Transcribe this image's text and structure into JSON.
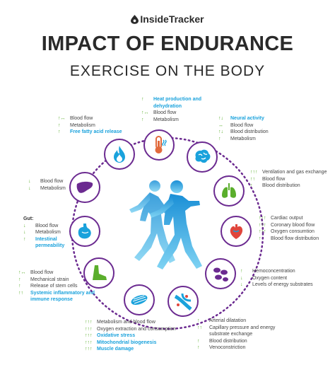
{
  "brand": "InsideTracker",
  "title_line1": "IMPACT OF ENDURANCE",
  "title_line2": "EXERCISE ON THE BODY",
  "colors": {
    "ring": "#6b2a90",
    "arrows": "#5aae2c",
    "highlight": "#1aa2dc",
    "runner": "#1aa2dc"
  },
  "blocks": {
    "fire": {
      "rows": [
        {
          "arrow": "↑↔",
          "text": "Blood flow"
        },
        {
          "arrow": "↑",
          "text": "Metabolism"
        },
        {
          "arrow": "↑",
          "text": "Free fatty acid release",
          "em": true
        }
      ]
    },
    "thermo": {
      "rows": [
        {
          "arrow": "↑",
          "text": "Heat production and dehydration",
          "em": true
        },
        {
          "arrow": "↑↔",
          "text": "Blood flow"
        },
        {
          "arrow": "↑",
          "text": "Metabolism"
        }
      ]
    },
    "brain": {
      "rows": [
        {
          "arrow": "↑↓",
          "text": "Neural activity",
          "em": true
        },
        {
          "arrow": "↔",
          "text": "Blood flow"
        },
        {
          "arrow": "↑↓",
          "text": "Blood distribution"
        },
        {
          "arrow": "↑",
          "text": "Metabolism"
        }
      ]
    },
    "lungs": {
      "rows": [
        {
          "arrow": "↑↑↑",
          "text": "Ventilation and gas exchange"
        },
        {
          "arrow": "↑↑",
          "text": "Blood flow"
        },
        {
          "arrow": "↑",
          "text": "Blood distribution"
        }
      ]
    },
    "heart": {
      "rows": [
        {
          "arrow": "↑↑↑",
          "text": "Cardiac output"
        },
        {
          "arrow": "↑↑↑",
          "text": "Coronary blood flow"
        },
        {
          "arrow": "↑↑↑",
          "text": "Oxygen consumtion"
        },
        {
          "arrow": "↑",
          "text": "Blood flow distribution"
        }
      ]
    },
    "blood": {
      "rows": [
        {
          "arrow": "↑",
          "text": "Hemoconcentration"
        },
        {
          "arrow": "↓",
          "text": "Oxygen content"
        },
        {
          "arrow": "↓",
          "text": "Levels of energy substrates"
        }
      ]
    },
    "vessels": {
      "rows": [
        {
          "arrow": "↑",
          "text": "Arterial dilatation"
        },
        {
          "arrow": "↑↑",
          "text": "Capillary pressure and energy substrate exchange"
        },
        {
          "arrow": "↑",
          "text": "Blood distribution"
        },
        {
          "arrow": "↑",
          "text": "Venoconstriction"
        }
      ]
    },
    "muscle": {
      "rows": [
        {
          "arrow": "↑↑↑",
          "text": "Metabolism and blood flow"
        },
        {
          "arrow": "↑↑↑",
          "text": "Oxygen extraction and consumption"
        },
        {
          "arrow": "↑↑↑",
          "text": "Oxidative stress",
          "em": true
        },
        {
          "arrow": "↑↑↑",
          "text": "Mitochondrial biogenesis",
          "em": true
        },
        {
          "arrow": "↑↑↑",
          "text": "Muscle damage",
          "em": true
        }
      ]
    },
    "bone": {
      "rows": [
        {
          "arrow": "↑↔",
          "text": "Blood flow"
        },
        {
          "arrow": "↑",
          "text": "Mechanical strain"
        },
        {
          "arrow": "↑",
          "text": "Release of stem cells"
        },
        {
          "arrow": "↑↑",
          "text": "Systemic inflammatory and immune response",
          "em": true
        }
      ]
    },
    "gut": {
      "heading": "Gut:",
      "rows": [
        {
          "arrow": "↓",
          "text": "Blood flow"
        },
        {
          "arrow": "↓",
          "text": "Metabolism"
        },
        {
          "arrow": "↑",
          "text": "Intestinal permeability",
          "em": true
        }
      ]
    },
    "liver": {
      "rows": [
        {
          "arrow": "↓",
          "text": "Blood flow"
        },
        {
          "arrow": "↓",
          "text": "Metabolism"
        }
      ]
    }
  }
}
